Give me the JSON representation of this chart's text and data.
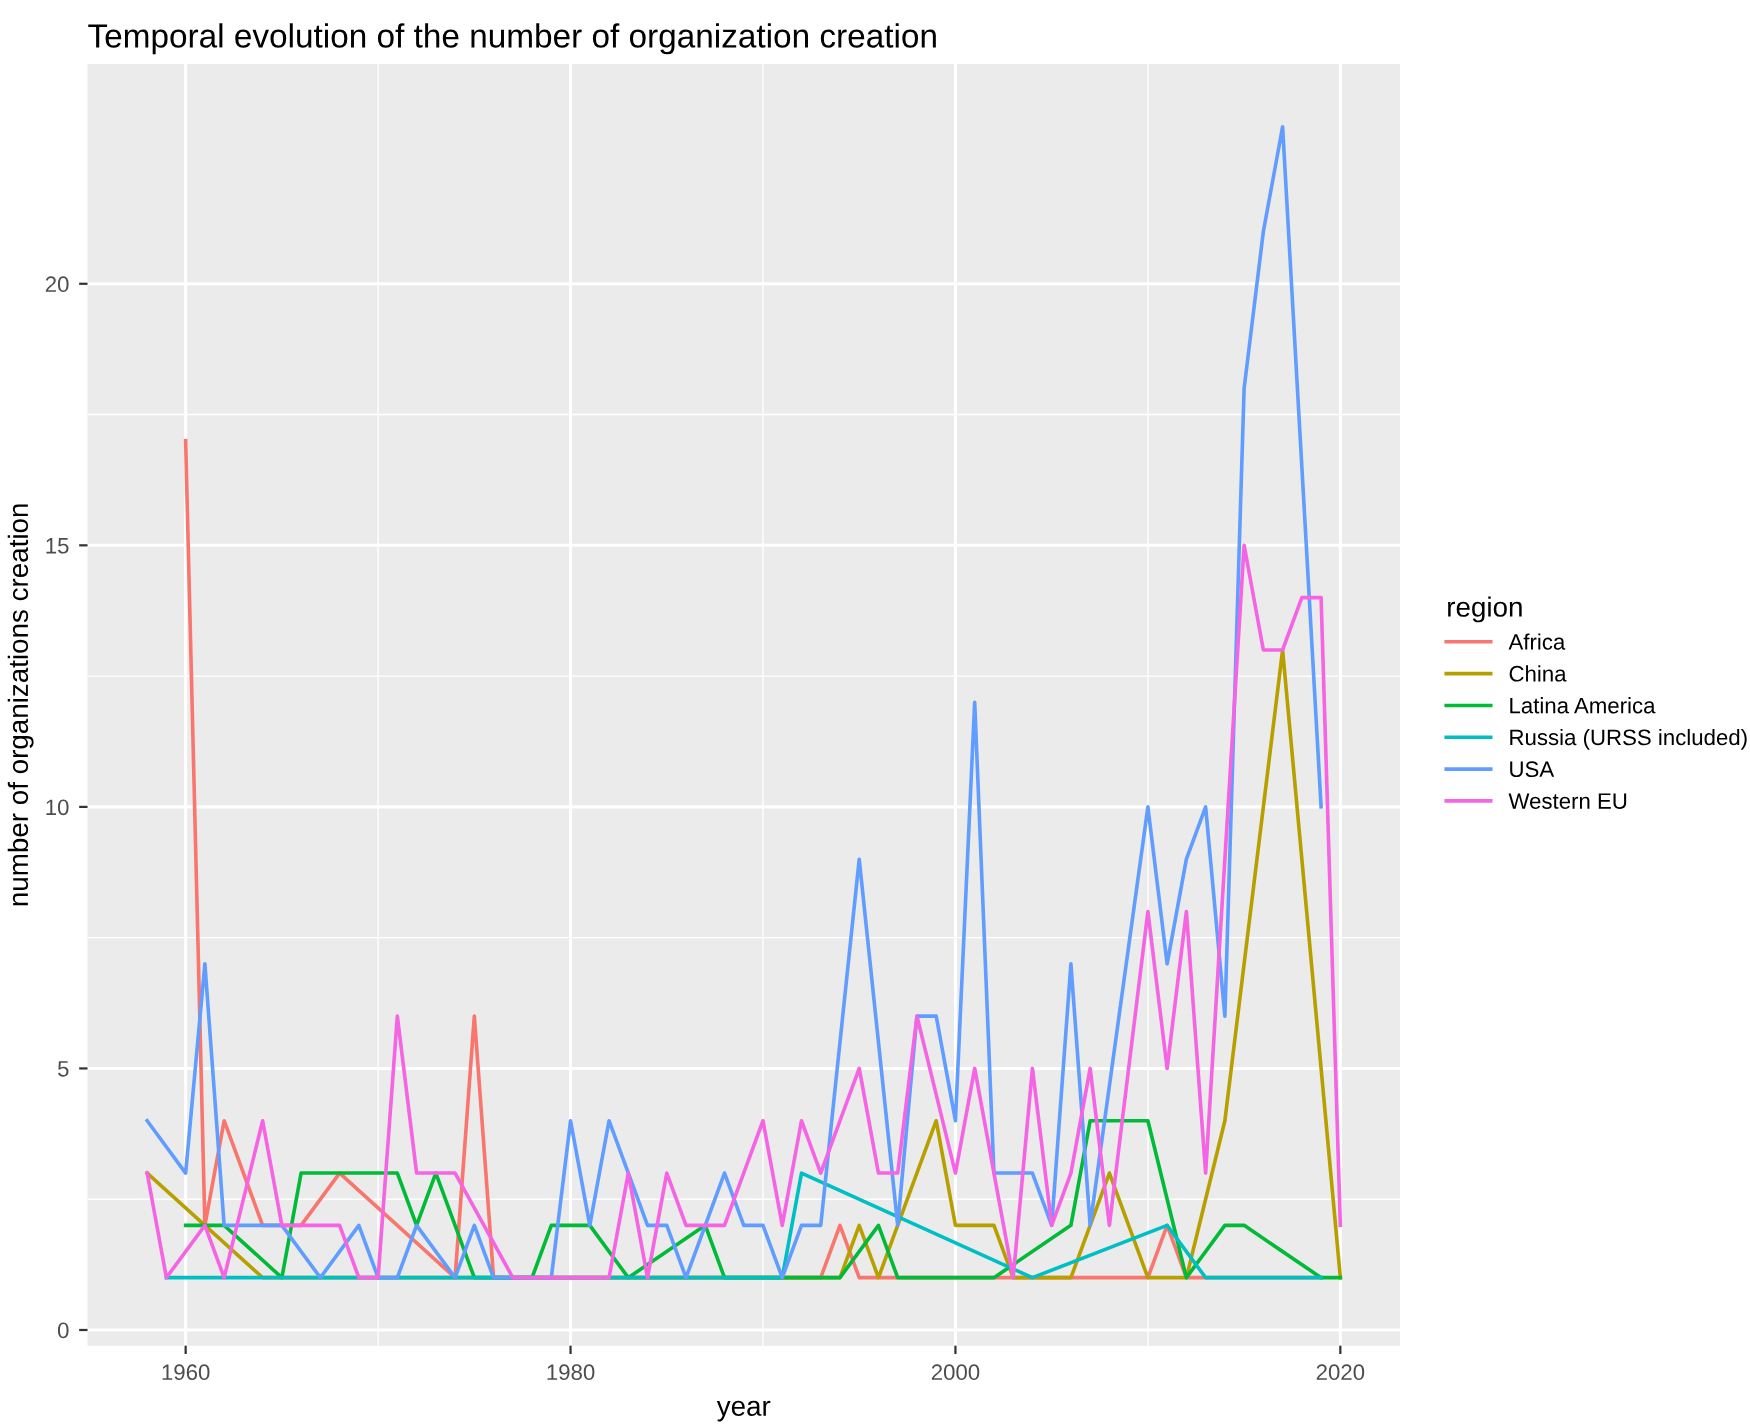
{
  "chart_data": {
    "type": "line",
    "title": "Temporal evolution of the number of organization creation",
    "xlabel": "year",
    "ylabel": "number of organizations creation",
    "legend_title": "region",
    "legend": "right",
    "grid": true,
    "xlim": [
      1954.9,
      2023.1
    ],
    "xticks": [
      1960,
      1980,
      2000,
      2020
    ],
    "ylim": [
      -0.3,
      24.2
    ],
    "yticks": [
      0,
      5,
      10,
      15,
      20
    ],
    "series": [
      {
        "name": "Africa",
        "color": "#f8766d",
        "x": [
          1960,
          1961,
          1962,
          1964,
          1966,
          1968,
          1974,
          1975,
          1976,
          1993,
          1994,
          1995,
          2010,
          2011,
          2012,
          2019
        ],
        "values": [
          17,
          2,
          4,
          2,
          2,
          3,
          1,
          6,
          1,
          1,
          2,
          1,
          1,
          2,
          1,
          1
        ]
      },
      {
        "name": "China",
        "color": "#b79f00",
        "x": [
          1958,
          1964,
          1994,
          1995,
          1996,
          1999,
          2000,
          2002,
          2003,
          2006,
          2008,
          2010,
          2012,
          2014,
          2017,
          2020
        ],
        "values": [
          3,
          1,
          1,
          2,
          1,
          4,
          2,
          2,
          1,
          1,
          3,
          1,
          1,
          4,
          13,
          1
        ]
      },
      {
        "name": "Latina America",
        "color": "#00ba38",
        "x": [
          1960,
          1962,
          1965,
          1966,
          1971,
          1972,
          1973,
          1975,
          1978,
          1979,
          1981,
          1983,
          1987,
          1988,
          1994,
          1996,
          1997,
          2002,
          2006,
          2007,
          2010,
          2012,
          2014,
          2015,
          2019,
          2020
        ],
        "values": [
          2,
          2,
          1,
          3,
          3,
          2,
          3,
          1,
          1,
          2,
          2,
          1,
          2,
          1,
          1,
          2,
          1,
          1,
          2,
          4,
          4,
          1,
          2,
          2,
          1,
          1
        ]
      },
      {
        "name": "Russia (URSS included)",
        "color": "#00bfc4",
        "x": [
          1959,
          1991,
          1992,
          2004,
          2011,
          2013,
          2019
        ],
        "values": [
          1,
          1,
          3,
          1,
          2,
          1,
          1
        ]
      },
      {
        "name": "USA",
        "color": "#619cff",
        "x": [
          1958,
          1960,
          1961,
          1962,
          1965,
          1967,
          1969,
          1970,
          1971,
          1972,
          1974,
          1975,
          1976,
          1979,
          1980,
          1981,
          1982,
          1984,
          1985,
          1986,
          1988,
          1989,
          1990,
          1991,
          1992,
          1993,
          1995,
          1997,
          1998,
          1999,
          2000,
          2001,
          2002,
          2004,
          2005,
          2006,
          2007,
          2010,
          2011,
          2012,
          2013,
          2014,
          2015,
          2016,
          2017,
          2019
        ],
        "values": [
          4,
          3,
          7,
          2,
          2,
          1,
          2,
          1,
          1,
          2,
          1,
          2,
          1,
          1,
          4,
          2,
          4,
          2,
          2,
          1,
          3,
          2,
          2,
          1,
          2,
          2,
          9,
          2,
          6,
          6,
          4,
          12,
          3,
          3,
          2,
          7,
          2,
          10,
          7,
          9,
          10,
          6,
          18,
          21,
          23,
          10
        ]
      },
      {
        "name": "Western EU",
        "color": "#f564e3",
        "x": [
          1958,
          1959,
          1961,
          1962,
          1964,
          1965,
          1968,
          1969,
          1970,
          1971,
          1972,
          1974,
          1977,
          1982,
          1983,
          1984,
          1985,
          1986,
          1988,
          1990,
          1991,
          1992,
          1993,
          1995,
          1996,
          1997,
          1998,
          2000,
          2001,
          2003,
          2004,
          2005,
          2006,
          2007,
          2008,
          2010,
          2011,
          2012,
          2013,
          2015,
          2016,
          2017,
          2018,
          2019,
          2020
        ],
        "values": [
          3,
          1,
          2,
          1,
          4,
          2,
          2,
          1,
          1,
          6,
          3,
          3,
          1,
          1,
          3,
          1,
          3,
          2,
          2,
          4,
          2,
          4,
          3,
          5,
          3,
          3,
          6,
          3,
          5,
          1,
          5,
          2,
          3,
          5,
          2,
          8,
          5,
          8,
          3,
          15,
          13,
          13,
          14,
          14,
          2
        ]
      }
    ]
  }
}
